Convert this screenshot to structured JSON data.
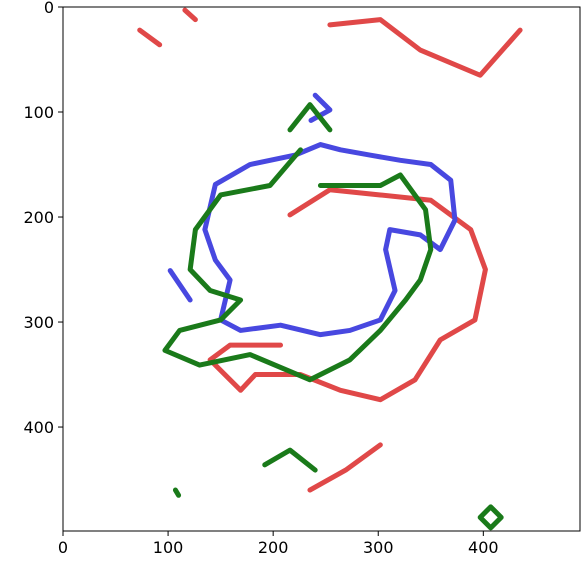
{
  "chart_data": {
    "type": "line",
    "xlim": [
      0,
      492
    ],
    "ylim": [
      499,
      0
    ],
    "xticks": [
      0,
      100,
      200,
      300,
      400
    ],
    "yticks": [
      0,
      100,
      200,
      300,
      400
    ],
    "series": [
      {
        "color": "#e04848",
        "x": [
          216,
          254,
          302,
          350,
          388,
          402,
          392,
          359,
          335,
          302,
          264,
          226,
          183,
          169,
          140,
          159,
          207
        ],
        "y": [
          198,
          174,
          179,
          184,
          212,
          250,
          298,
          317,
          355,
          374,
          365,
          350,
          350,
          365,
          336,
          322,
          322
        ]
      },
      {
        "color": "#e04848",
        "x": [
          254,
          302,
          340,
          397,
          435
        ],
        "y": [
          17,
          12,
          41,
          65,
          22
        ]
      },
      {
        "color": "#e04848",
        "x": [
          73,
          92
        ],
        "y": [
          22,
          36
        ]
      },
      {
        "color": "#e04848",
        "x": [
          116,
          126
        ],
        "y": [
          3,
          12
        ]
      },
      {
        "color": "#e04848",
        "x": [
          235,
          269,
          302
        ],
        "y": [
          460,
          441,
          417
        ]
      },
      {
        "color": "#4848e0",
        "x": [
          221,
          178,
          145,
          135,
          145,
          159,
          150,
          169,
          207,
          245,
          273,
          302,
          316,
          307,
          311,
          340,
          359,
          373,
          369,
          350,
          321,
          292,
          264,
          245,
          221
        ],
        "y": [
          141,
          150,
          169,
          212,
          241,
          260,
          298,
          308,
          303,
          312,
          308,
          298,
          270,
          231,
          212,
          217,
          231,
          203,
          165,
          150,
          146,
          141,
          136,
          131,
          141
        ]
      },
      {
        "color": "#4848e0",
        "x": [
          240,
          254,
          236
        ],
        "y": [
          84,
          98,
          108
        ]
      },
      {
        "color": "#4848e0",
        "x": [
          102,
          121
        ],
        "y": [
          251,
          279
        ]
      },
      {
        "color": "#1a7a1a",
        "x": [
          226,
          197,
          150,
          126,
          121,
          140,
          169,
          150,
          111,
          97,
          130,
          178,
          235,
          273,
          302,
          326,
          340,
          350,
          345,
          321,
          302,
          245
        ],
        "y": [
          136,
          170,
          179,
          212,
          250,
          270,
          279,
          298,
          308,
          327,
          341,
          331,
          355,
          336,
          308,
          279,
          260,
          231,
          193,
          160,
          170,
          170
        ]
      },
      {
        "color": "#1a7a1a",
        "x": [
          216,
          235,
          254
        ],
        "y": [
          117,
          93,
          117
        ]
      },
      {
        "color": "#1a7a1a",
        "x": [
          192,
          216,
          240
        ],
        "y": [
          436,
          422,
          441
        ]
      },
      {
        "color": "#1a7a1a",
        "x": [
          407,
          417,
          407,
          397,
          407
        ],
        "y": [
          476,
          486,
          496,
          486,
          476
        ]
      },
      {
        "color": "#1a7a1a",
        "x": [
          107,
          110
        ],
        "y": [
          460,
          465
        ]
      }
    ]
  }
}
